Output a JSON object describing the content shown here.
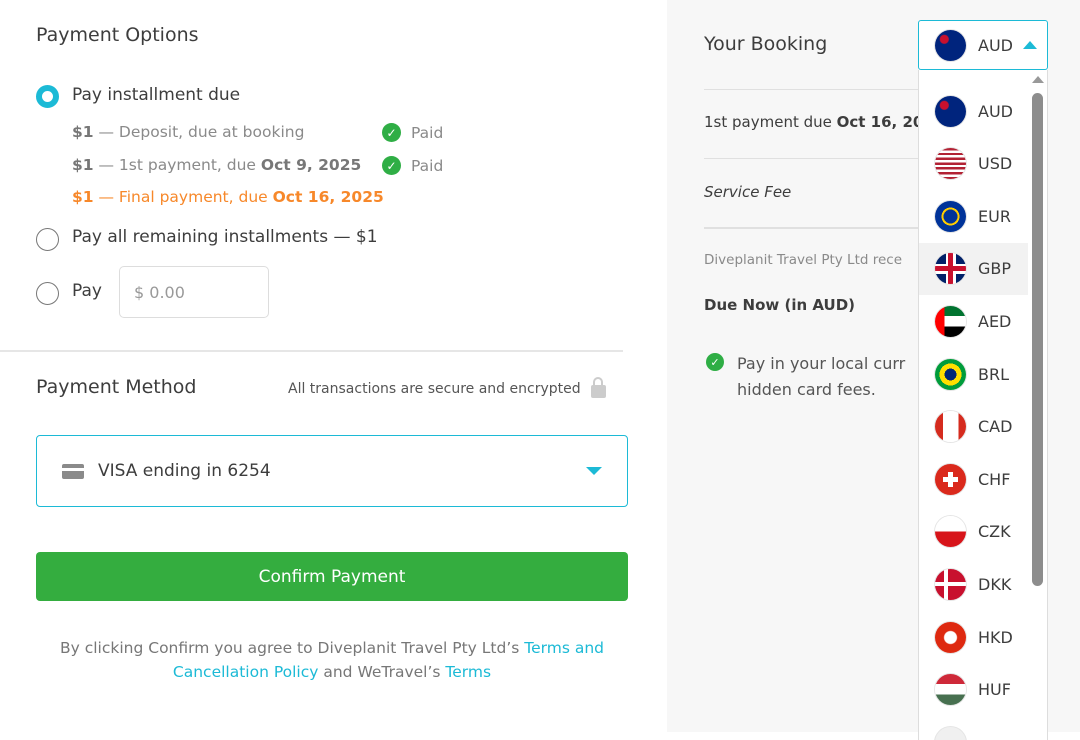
{
  "payment_options": {
    "title": "Payment Options",
    "options": [
      {
        "label": "Pay installment due",
        "selected": true
      },
      {
        "label": "Pay all remaining installments — $1",
        "selected": false
      },
      {
        "label": "Pay",
        "selected": false
      }
    ],
    "installments": [
      {
        "amount": "$1",
        "text": " — Deposit, due at booking",
        "date": "",
        "status": "Paid"
      },
      {
        "amount": "$1",
        "text": " — 1st payment, due ",
        "date": "Oct 9, 2025",
        "status": "Paid"
      },
      {
        "amount": "$1",
        "text": " — Final payment, due ",
        "date": "Oct 16, 2025",
        "status": ""
      }
    ],
    "custom_amount_placeholder": "$ 0.00"
  },
  "payment_method": {
    "title": "Payment Method",
    "secure_text": "All transactions are secure and encrypted",
    "card": "VISA ending in 6254",
    "confirm": "Confirm Payment",
    "terms": {
      "pre": "By clicking Confirm you agree to Diveplanit Travel Pty Ltd’s ",
      "link1": "Terms and Cancellation Policy",
      "mid": " and WeTravel’s ",
      "link2": "Terms"
    }
  },
  "booking": {
    "title": "Your Booking",
    "first_payment": "1st payment due ",
    "first_payment_date": "Oct 16, 20",
    "service_fee": "Service Fee",
    "receives": "Diveplanit Travel Pty Ltd rece",
    "due_now": "Due Now (in AUD)",
    "local_note_1": "Pay in your local curr",
    "local_note_2": "hidden card fees."
  },
  "currency": {
    "selected": "AUD",
    "highlighted": "GBP",
    "options": [
      "AUD",
      "USD",
      "EUR",
      "GBP",
      "AED",
      "BRL",
      "CAD",
      "CHF",
      "CZK",
      "DKK",
      "HKD",
      "HUF",
      ""
    ]
  },
  "colors": {
    "accent": "#1cbad6",
    "confirm": "#34ad3f",
    "warning": "#f7882a",
    "paid": "#2fae45"
  }
}
